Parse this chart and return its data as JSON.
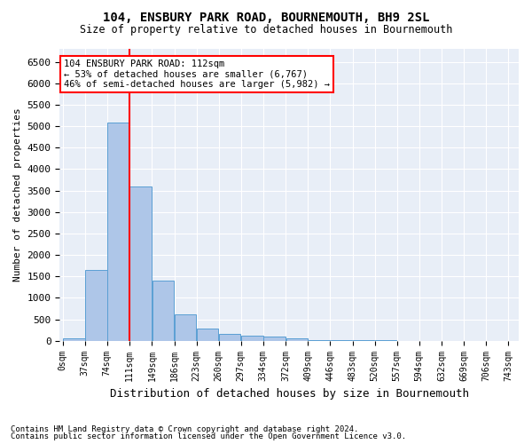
{
  "title1": "104, ENSBURY PARK ROAD, BOURNEMOUTH, BH9 2SL",
  "title2": "Size of property relative to detached houses in Bournemouth",
  "xlabel": "Distribution of detached houses by size in Bournemouth",
  "ylabel": "Number of detached properties",
  "footnote1": "Contains HM Land Registry data © Crown copyright and database right 2024.",
  "footnote2": "Contains public sector information licensed under the Open Government Licence v3.0.",
  "annotation_line1": "104 ENSBURY PARK ROAD: 112sqm",
  "annotation_line2": "← 53% of detached houses are smaller (6,767)",
  "annotation_line3": "46% of semi-detached houses are larger (5,982) →",
  "bar_left_edges": [
    0,
    37,
    74,
    111,
    149,
    186,
    223,
    260,
    297,
    334,
    372,
    409,
    446,
    483,
    520,
    557,
    594,
    632,
    669,
    706
  ],
  "bar_widths": [
    37,
    37,
    37,
    37,
    37,
    37,
    37,
    37,
    37,
    37,
    37,
    37,
    37,
    37,
    37,
    37,
    37,
    37,
    37,
    37
  ],
  "bar_heights": [
    60,
    1650,
    5075,
    3600,
    1400,
    610,
    290,
    155,
    110,
    90,
    50,
    10,
    10,
    5,
    5,
    0,
    0,
    0,
    0,
    0
  ],
  "bar_color": "#aec6e8",
  "bar_edge_color": "#5a9fd4",
  "tick_positions": [
    0,
    37,
    74,
    111,
    149,
    186,
    223,
    260,
    297,
    334,
    372,
    409,
    446,
    483,
    520,
    557,
    594,
    632,
    669,
    706,
    743
  ],
  "tick_labels": [
    "0sqm",
    "37sqm",
    "74sqm",
    "111sqm",
    "149sqm",
    "186sqm",
    "223sqm",
    "260sqm",
    "297sqm",
    "334sqm",
    "372sqm",
    "409sqm",
    "446sqm",
    "483sqm",
    "520sqm",
    "557sqm",
    "594sqm",
    "632sqm",
    "669sqm",
    "706sqm",
    "743sqm"
  ],
  "redline_x": 112,
  "ylim": [
    0,
    6800
  ],
  "yticks": [
    0,
    500,
    1000,
    1500,
    2000,
    2500,
    3000,
    3500,
    4000,
    4500,
    5000,
    5500,
    6000,
    6500
  ],
  "background_color": "#e8eef7",
  "grid_color": "#ffffff"
}
